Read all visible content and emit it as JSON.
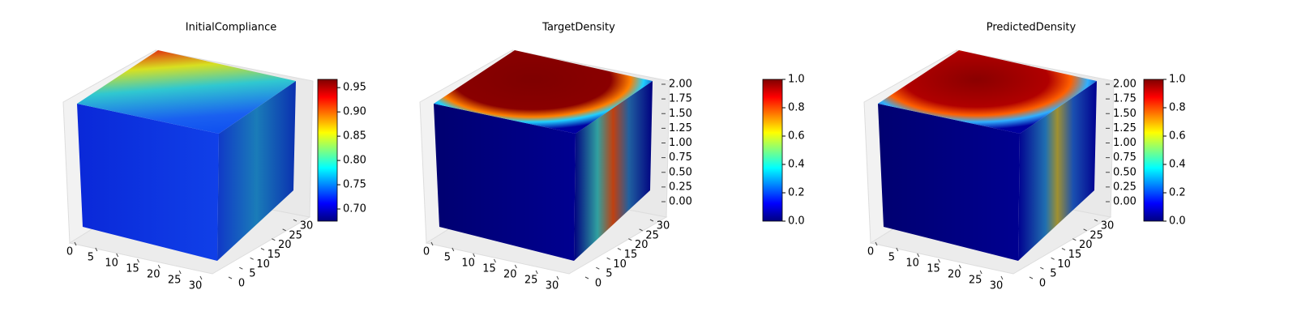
{
  "chart_data": [
    {
      "type": "voxel3d",
      "title": "InitialCompliance",
      "colormap": "jet",
      "xlim": [
        0,
        32
      ],
      "xticks": [
        0,
        5,
        10,
        15,
        20,
        25,
        30
      ],
      "ylim": [
        0,
        32
      ],
      "yticks": [
        0,
        5,
        10,
        15,
        20,
        25,
        30
      ],
      "clim": [
        0.675,
        0.967
      ],
      "cticks": [
        {
          "value": 0.7,
          "label": "0.70"
        },
        {
          "value": 0.75,
          "label": "0.75"
        },
        {
          "value": 0.8,
          "label": "0.80"
        },
        {
          "value": 0.85,
          "label": "0.85"
        },
        {
          "value": 0.9,
          "label": "0.90"
        },
        {
          "value": 0.95,
          "label": "0.95"
        }
      ]
    },
    {
      "type": "voxel3d",
      "title": "TargetDensity",
      "colormap": "jet",
      "xlim": [
        0,
        32
      ],
      "xticks": [
        0,
        5,
        10,
        15,
        20,
        25,
        30
      ],
      "ylim": [
        0,
        32
      ],
      "yticks": [
        0,
        5,
        10,
        15,
        20,
        25,
        30
      ],
      "zlim": [
        0,
        2
      ],
      "zticks": [
        {
          "value": 0,
          "label": "0.00"
        },
        {
          "value": 0.25,
          "label": "0.25"
        },
        {
          "value": 0.5,
          "label": "0.50"
        },
        {
          "value": 0.75,
          "label": "0.75"
        },
        {
          "value": 1,
          "label": "1.00"
        },
        {
          "value": 1.25,
          "label": "1.25"
        },
        {
          "value": 1.5,
          "label": "1.50"
        },
        {
          "value": 1.75,
          "label": "1.75"
        },
        {
          "value": 2,
          "label": "2.00"
        }
      ],
      "clim": [
        0,
        1
      ],
      "cticks": [
        {
          "value": 0,
          "label": "0.0"
        },
        {
          "value": 0.2,
          "label": "0.2"
        },
        {
          "value": 0.4,
          "label": "0.4"
        },
        {
          "value": 0.6,
          "label": "0.6"
        },
        {
          "value": 0.8,
          "label": "0.8"
        },
        {
          "value": 1,
          "label": "1.0"
        }
      ]
    },
    {
      "type": "voxel3d",
      "title": "PredictedDensity",
      "colormap": "jet",
      "xlim": [
        0,
        32
      ],
      "xticks": [
        0,
        5,
        10,
        15,
        20,
        25,
        30
      ],
      "ylim": [
        0,
        32
      ],
      "yticks": [
        0,
        5,
        10,
        15,
        20,
        25,
        30
      ],
      "zlim": [
        0,
        2
      ],
      "zticks": [
        {
          "value": 0,
          "label": "0.00"
        },
        {
          "value": 0.25,
          "label": "0.25"
        },
        {
          "value": 0.5,
          "label": "0.50"
        },
        {
          "value": 0.75,
          "label": "0.75"
        },
        {
          "value": 1,
          "label": "1.00"
        },
        {
          "value": 1.25,
          "label": "1.25"
        },
        {
          "value": 1.5,
          "label": "1.50"
        },
        {
          "value": 1.75,
          "label": "1.75"
        },
        {
          "value": 2,
          "label": "2.00"
        }
      ],
      "clim": [
        0,
        1
      ],
      "cticks": [
        {
          "value": 0,
          "label": "0.0"
        },
        {
          "value": 0.2,
          "label": "0.2"
        },
        {
          "value": 0.4,
          "label": "0.4"
        },
        {
          "value": 0.6,
          "label": "0.6"
        },
        {
          "value": 0.8,
          "label": "0.8"
        },
        {
          "value": 1,
          "label": "1.0"
        }
      ]
    }
  ]
}
